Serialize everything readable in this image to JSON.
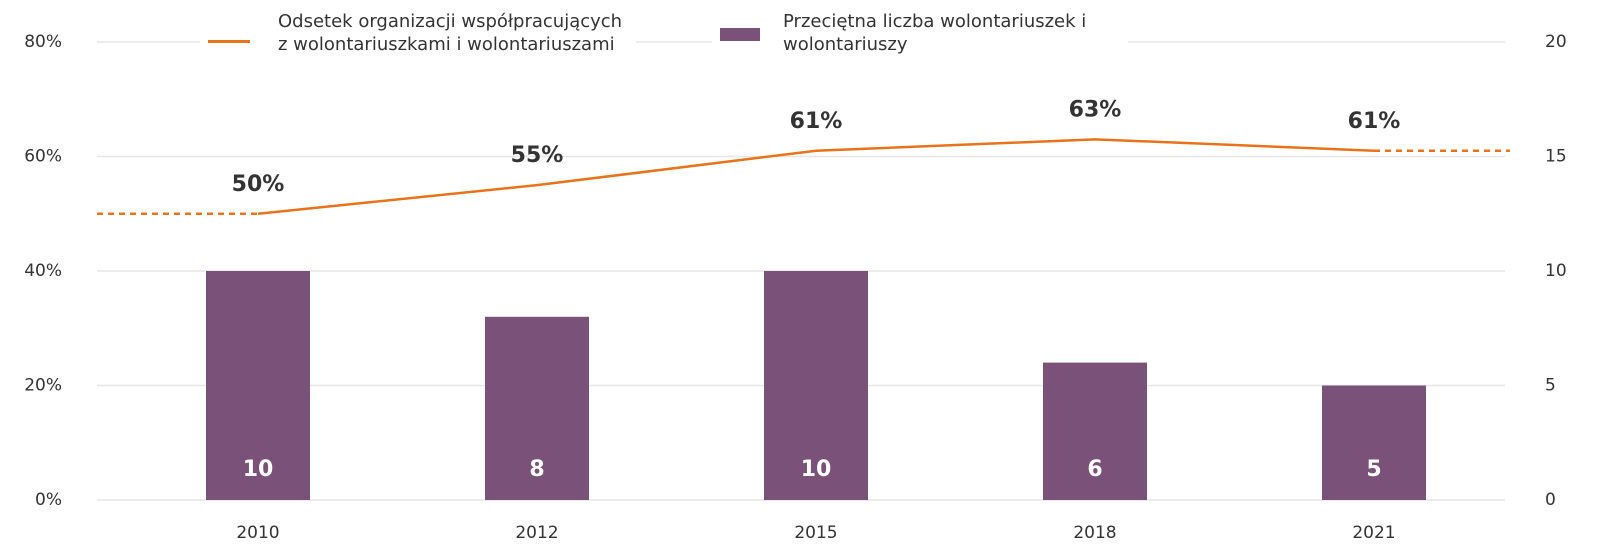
{
  "chart_data": {
    "type": "bar_line",
    "categories": [
      "2010",
      "2012",
      "2015",
      "2018",
      "2021"
    ],
    "series": [
      {
        "name": "Odsetek organizacji współpracujących z wolontariuszkami i wolontariuszami",
        "type": "line",
        "color": "#e8731a",
        "axis": "y",
        "values": [
          50,
          55,
          61,
          63,
          61
        ],
        "value_labels": [
          "50%",
          "55%",
          "61%",
          "63%",
          "61%"
        ]
      },
      {
        "name": "Przeciętna liczba wolontariuszek i wolontariuszy",
        "type": "bar",
        "color": "#7a5279",
        "axis": "y2",
        "values": [
          10,
          8,
          10,
          6,
          5
        ]
      }
    ],
    "ylim": [
      0,
      80
    ],
    "yticks": [
      {
        "value": 0,
        "label": "0%"
      },
      {
        "value": 20,
        "label": "20%"
      },
      {
        "value": 40,
        "label": "40%"
      },
      {
        "value": 60,
        "label": "60%"
      },
      {
        "value": 80,
        "label": "80%"
      }
    ],
    "y2lim": [
      0,
      20
    ],
    "y2ticks": [
      0,
      5,
      10,
      15,
      20
    ],
    "grid": true
  }
}
